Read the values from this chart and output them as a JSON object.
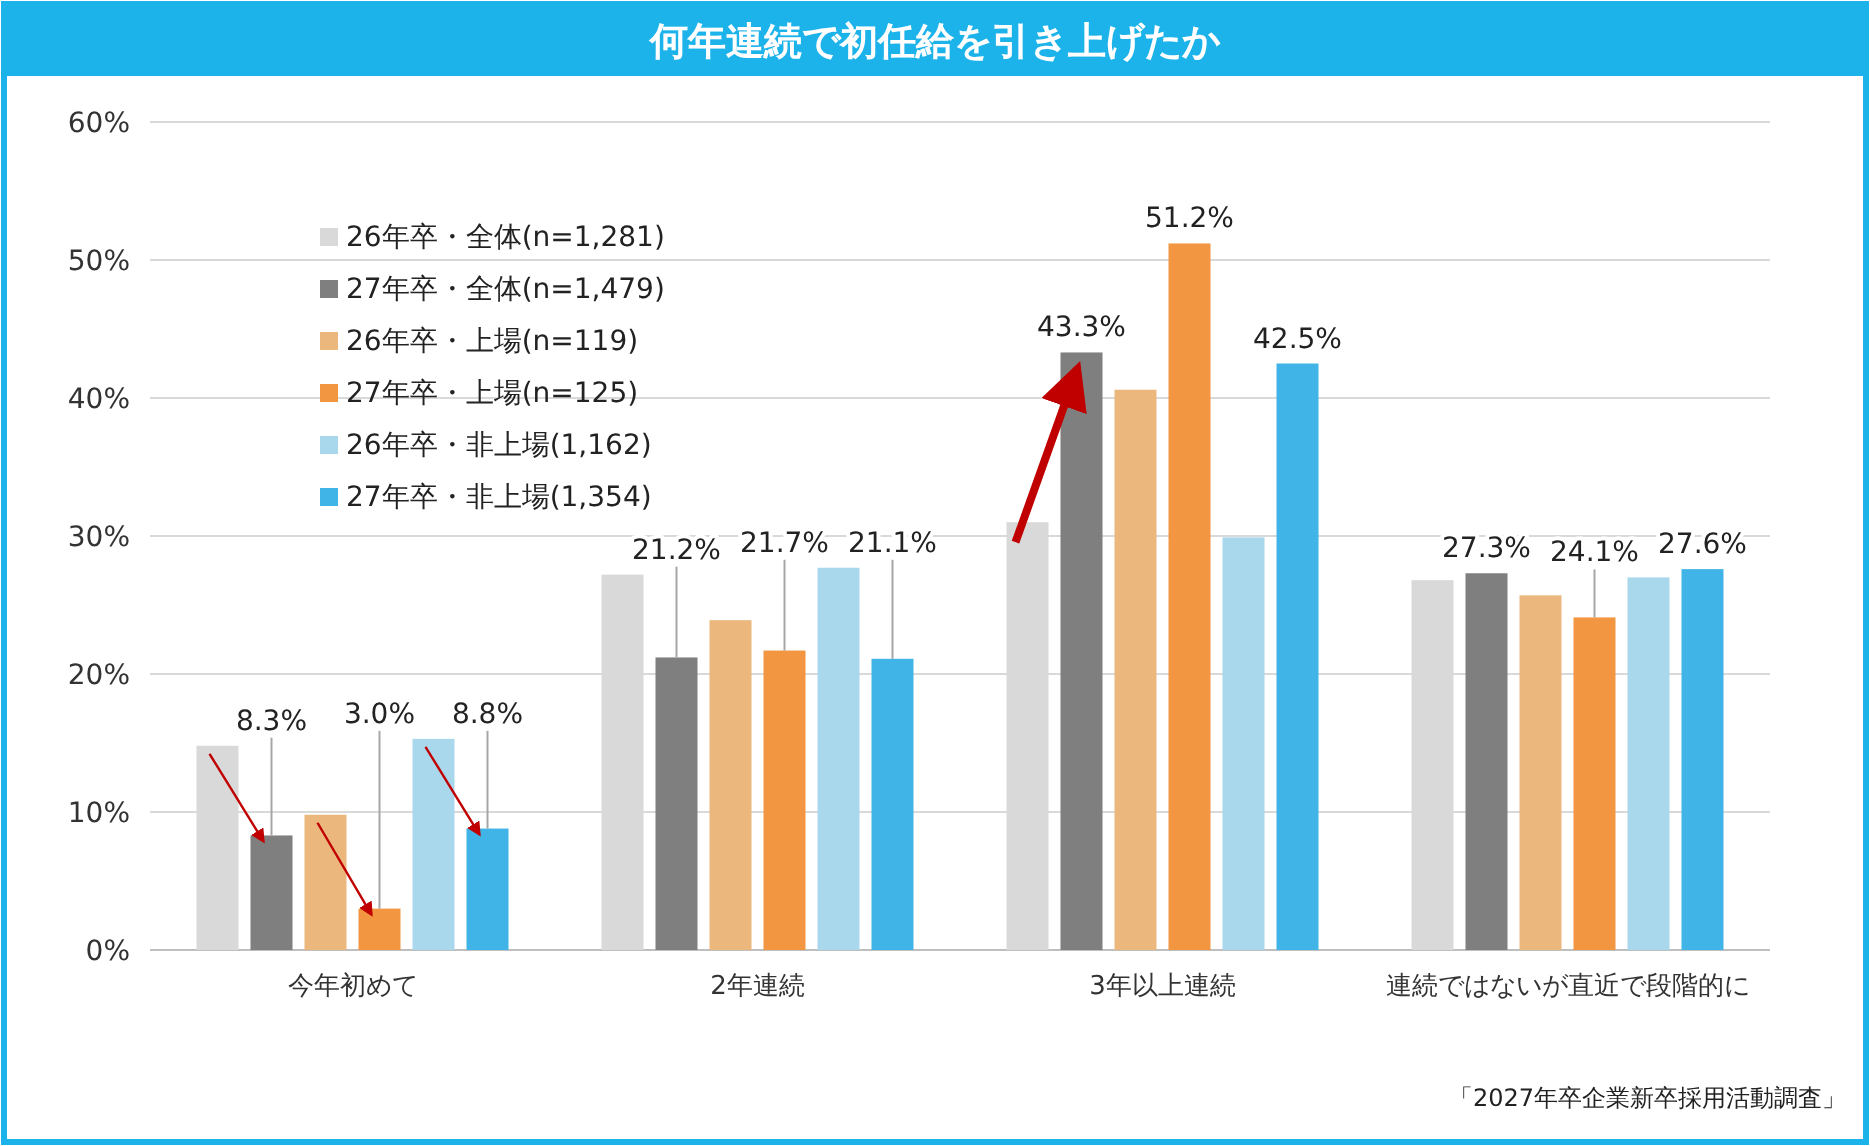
{
  "chart_data": {
    "type": "bar",
    "title": "何年連続で初任給を引き上げたか",
    "categories": [
      "今年初めて",
      "2年連続",
      "3年以上連続",
      "連続ではないが直近で段階的に"
    ],
    "series": [
      {
        "name": "26年卒・全体(n=1,281)",
        "color": "#d9d9d9",
        "values": [
          14.8,
          27.2,
          31.0,
          26.8
        ],
        "value_labels": [
          null,
          null,
          null,
          null
        ]
      },
      {
        "name": "27年卒・全体(n=1,479)",
        "color": "#7f7f7f",
        "values": [
          8.3,
          21.2,
          43.3,
          27.3
        ],
        "value_labels": [
          "8.3%",
          "21.2%",
          "43.3%",
          "27.3%"
        ]
      },
      {
        "name": "26年卒・上場(n=119)",
        "color": "#ebb77c",
        "values": [
          9.8,
          23.9,
          40.6,
          25.7
        ],
        "value_labels": [
          null,
          null,
          null,
          null
        ]
      },
      {
        "name": "27年卒・上場(n=125)",
        "color": "#f39641",
        "values": [
          3.0,
          21.7,
          51.2,
          24.1
        ],
        "value_labels": [
          "3.0%",
          "21.7%",
          "51.2%",
          "24.1%"
        ]
      },
      {
        "name": "26年卒・非上場(1,162)",
        "color": "#a9d8ec",
        "values": [
          15.3,
          27.7,
          29.9,
          27.0
        ],
        "value_labels": [
          null,
          null,
          null,
          null
        ]
      },
      {
        "name": "27年卒・非上場(1,354)",
        "color": "#40b4e6",
        "values": [
          8.8,
          21.1,
          42.5,
          27.6
        ],
        "value_labels": [
          "8.8%",
          "21.1%",
          "42.5%",
          "27.6%"
        ]
      }
    ],
    "ylim": [
      0,
      60
    ],
    "yticks": [
      {
        "value": 0,
        "label": "0%"
      },
      {
        "value": 10,
        "label": "10%"
      },
      {
        "value": 20,
        "label": "20%"
      },
      {
        "value": 30,
        "label": "30%"
      },
      {
        "value": 40,
        "label": "40%"
      },
      {
        "value": 50,
        "label": "50%"
      },
      {
        "value": 60,
        "label": "60%"
      }
    ],
    "grid": "y",
    "legend": "top left",
    "annotations": [
      "「2027年卒企業新卒採用活動調査」"
    ]
  }
}
